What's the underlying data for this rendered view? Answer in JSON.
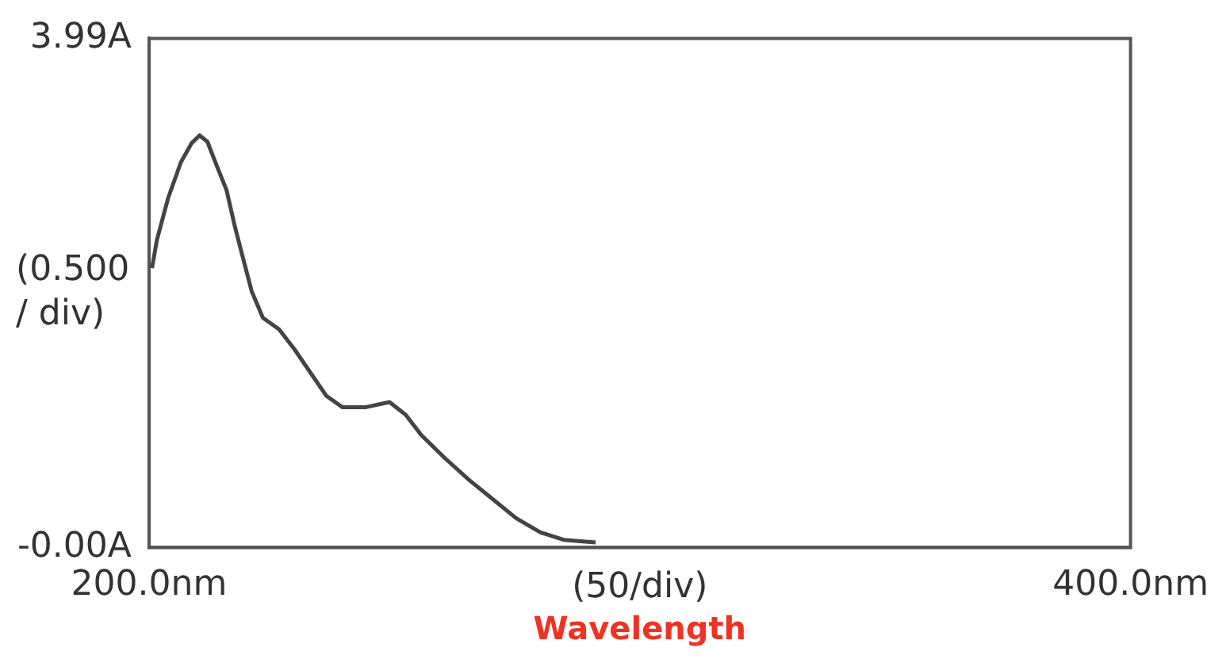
{
  "chart_data": {
    "type": "line",
    "xlabel": "(50/div)",
    "annotations": [
      "Wavelength"
    ],
    "ylabel": "(0.500 / div)",
    "x": [
      200.6,
      201.6,
      203.9,
      206.5,
      208.7,
      210.3,
      211.9,
      213.5,
      215.8,
      217.4,
      219.0,
      220.9,
      223.2,
      226.5,
      229.7,
      232.9,
      236.1,
      239.4,
      244.2,
      249.0,
      252.3,
      255.5,
      260.3,
      265.2,
      270.0,
      274.8,
      279.7,
      284.5,
      291.0
    ],
    "series": [
      {
        "color": "#444444",
        "values": [
          2.19,
          2.41,
          2.74,
          3.02,
          3.17,
          3.23,
          3.18,
          3.02,
          2.8,
          2.53,
          2.29,
          2.01,
          1.8,
          1.71,
          1.55,
          1.37,
          1.19,
          1.1,
          1.1,
          1.14,
          1.04,
          0.88,
          0.7,
          0.53,
          0.38,
          0.23,
          0.12,
          0.06,
          0.04
        ]
      }
    ],
    "xlim": [
      200,
      400
    ],
    "ylim": [
      0,
      3.99
    ],
    "xticks": [
      {
        "value": 200,
        "label": "200.0nm"
      },
      {
        "value": 400,
        "label": "400.0nm"
      }
    ],
    "yticks": [
      {
        "value": 0,
        "label": "-0.00A"
      },
      {
        "value": 3.99,
        "label": "3.99A"
      }
    ],
    "grid": false,
    "legend": false,
    "marker": "none",
    "line_style": "solid"
  }
}
